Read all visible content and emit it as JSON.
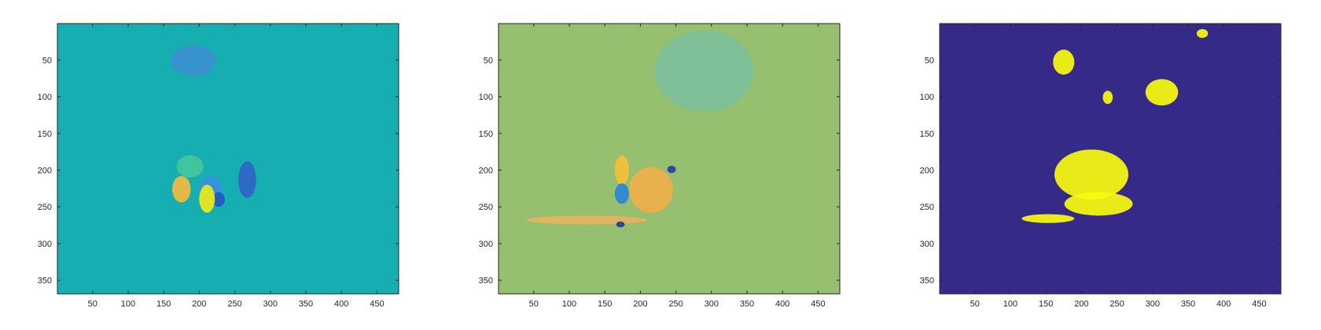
{
  "chart_data": [
    {
      "type": "heatmap",
      "title": "",
      "xlabel": "",
      "ylabel": "",
      "xlim": [
        0.5,
        480.5
      ],
      "ylim": [
        368.5,
        0.5
      ],
      "y_reversed": true,
      "grid": false,
      "xticks": [
        50,
        100,
        150,
        200,
        250,
        300,
        350,
        400,
        450
      ],
      "yticks": [
        50,
        100,
        150,
        200,
        250,
        300,
        350
      ],
      "background_color": "#17aeb1",
      "regions": [
        {
          "shape": "patch",
          "color": "#f6ba3e",
          "x": [
            162,
            188
          ],
          "y": [
            208,
            244
          ]
        },
        {
          "shape": "patch",
          "color": "#3b8fe0",
          "x": [
            200,
            232
          ],
          "y": [
            208,
            244
          ]
        },
        {
          "shape": "patch",
          "color": "#2f64c8",
          "x": [
            255,
            280
          ],
          "y": [
            188,
            238
          ]
        },
        {
          "shape": "patch",
          "color": "#2558c2",
          "x": [
            218,
            236
          ],
          "y": [
            230,
            250
          ]
        },
        {
          "shape": "patch",
          "color": "#47c69d",
          "x": [
            168,
            206
          ],
          "y": [
            180,
            210
          ]
        },
        {
          "shape": "patch",
          "color": "#eeea18",
          "x": [
            200,
            222
          ],
          "y": [
            220,
            258
          ]
        },
        {
          "shape": "patch",
          "color": "#3c8fcf",
          "x": [
            160,
            224
          ],
          "y": [
            30,
            72
          ]
        }
      ]
    },
    {
      "type": "heatmap",
      "title": "",
      "xlabel": "",
      "ylabel": "",
      "xlim": [
        0.5,
        480.5
      ],
      "ylim": [
        368.5,
        0.5
      ],
      "y_reversed": true,
      "grid": false,
      "xticks": [
        50,
        100,
        150,
        200,
        250,
        300,
        350,
        400,
        450
      ],
      "yticks": [
        50,
        100,
        150,
        200,
        250,
        300,
        350
      ],
      "background_color": "#96bf6f",
      "regions": [
        {
          "shape": "patch",
          "color": "#f6c03a",
          "x": [
            164,
            184
          ],
          "y": [
            180,
            220
          ]
        },
        {
          "shape": "patch",
          "color": "#2b86d9",
          "x": [
            164,
            184
          ],
          "y": [
            218,
            246
          ]
        },
        {
          "shape": "patch",
          "color": "#f0b04a",
          "x": [
            184,
            246
          ],
          "y": [
            196,
            258
          ]
        },
        {
          "shape": "patch",
          "color": "#2a3aa8",
          "x": [
            238,
            250
          ],
          "y": [
            194,
            204
          ]
        },
        {
          "shape": "patch",
          "color": "#e7b45e",
          "x": [
            40,
            210
          ],
          "y": [
            262,
            274
          ]
        },
        {
          "shape": "patch",
          "color": "#253a96",
          "x": [
            166,
            178
          ],
          "y": [
            270,
            278
          ]
        },
        {
          "shape": "patch",
          "color": "#7dc09b",
          "x": [
            220,
            360
          ],
          "y": [
            10,
            120
          ]
        }
      ]
    },
    {
      "type": "heatmap",
      "title": "",
      "xlabel": "",
      "ylabel": "",
      "xlim": [
        0.5,
        480.5
      ],
      "ylim": [
        368.5,
        0.5
      ],
      "y_reversed": true,
      "grid": false,
      "xticks": [
        50,
        100,
        150,
        200,
        250,
        300,
        350,
        400,
        450
      ],
      "yticks": [
        50,
        100,
        150,
        200,
        250,
        300,
        350
      ],
      "background_color": "#352a87",
      "regions": [
        {
          "shape": "patch",
          "color": "#f9fb0e",
          "x": [
            162,
            266
          ],
          "y": [
            172,
            240
          ]
        },
        {
          "shape": "patch",
          "color": "#f9fb0e",
          "x": [
            176,
            272
          ],
          "y": [
            230,
            262
          ]
        },
        {
          "shape": "patch",
          "color": "#f9fb0e",
          "x": [
            116,
            190
          ],
          "y": [
            260,
            272
          ]
        },
        {
          "shape": "patch",
          "color": "#f9fb0e",
          "x": [
            160,
            190
          ],
          "y": [
            36,
            70
          ]
        },
        {
          "shape": "patch",
          "color": "#f9fb0e",
          "x": [
            290,
            336
          ],
          "y": [
            76,
            112
          ]
        },
        {
          "shape": "patch",
          "color": "#f9fb0e",
          "x": [
            362,
            378
          ],
          "y": [
            8,
            20
          ]
        },
        {
          "shape": "patch",
          "color": "#f9fb0e",
          "x": [
            230,
            244
          ],
          "y": [
            92,
            110
          ]
        }
      ]
    }
  ]
}
